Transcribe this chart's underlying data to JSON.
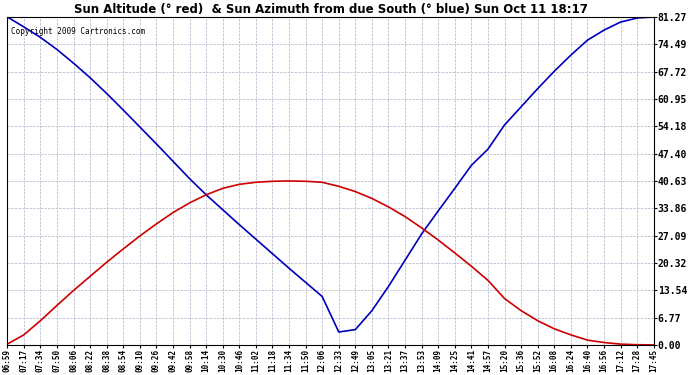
{
  "title": "Sun Altitude (° red)  & Sun Azimuth from due South (° blue) Sun Oct 11 18:17",
  "copyright": "Copyright 2009 Cartronics.com",
  "yticks": [
    0.0,
    6.77,
    13.54,
    20.32,
    27.09,
    33.86,
    40.63,
    47.4,
    54.18,
    60.95,
    67.72,
    74.49,
    81.27
  ],
  "ymin": 0.0,
  "ymax": 81.27,
  "background_color": "#ffffff",
  "plot_bg_color": "#ffffff",
  "grid_color": "#b0b0cc",
  "blue_color": "#0000bb",
  "red_color": "#cc0000",
  "xtick_labels": [
    "06:59",
    "07:17",
    "07:34",
    "07:50",
    "08:06",
    "08:22",
    "08:38",
    "08:54",
    "09:10",
    "09:26",
    "09:42",
    "09:58",
    "10:14",
    "10:30",
    "10:46",
    "11:02",
    "11:18",
    "11:34",
    "11:50",
    "12:06",
    "12:33",
    "12:49",
    "13:05",
    "13:21",
    "13:37",
    "13:53",
    "14:09",
    "14:25",
    "14:41",
    "14:57",
    "15:20",
    "15:36",
    "15:52",
    "16:08",
    "16:24",
    "16:40",
    "16:56",
    "17:12",
    "17:28",
    "17:45"
  ],
  "blue_y": [
    81.27,
    78.8,
    76.2,
    73.2,
    69.8,
    66.2,
    62.3,
    58.2,
    54.0,
    49.8,
    45.5,
    41.2,
    37.2,
    33.5,
    29.8,
    26.2,
    22.6,
    19.0,
    15.5,
    12.0,
    3.2,
    3.8,
    8.5,
    14.5,
    21.0,
    27.5,
    33.2,
    38.8,
    44.5,
    48.5,
    54.5,
    59.0,
    63.5,
    67.8,
    71.8,
    75.5,
    78.0,
    80.0,
    81.0,
    81.27
  ],
  "red_y": [
    0.2,
    2.5,
    6.0,
    9.8,
    13.5,
    17.0,
    20.5,
    23.8,
    27.0,
    30.0,
    32.8,
    35.2,
    37.2,
    38.8,
    39.8,
    40.3,
    40.55,
    40.63,
    40.55,
    40.3,
    39.3,
    38.0,
    36.3,
    34.2,
    31.8,
    29.0,
    26.0,
    22.8,
    19.5,
    16.0,
    11.5,
    8.5,
    6.0,
    4.0,
    2.5,
    1.2,
    0.6,
    0.2,
    0.05,
    0.0
  ]
}
